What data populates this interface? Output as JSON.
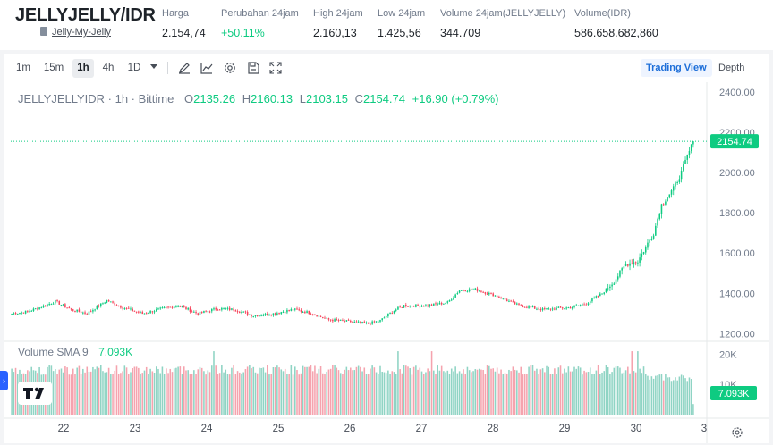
{
  "header": {
    "pair": "JELLYJELLY/IDR",
    "pair_link": "Jelly-My-Jelly",
    "stats": [
      {
        "label": "Harga",
        "value": "2.154,74",
        "up": false
      },
      {
        "label": "Perubahan 24jam",
        "value": "+50.11%",
        "up": true
      },
      {
        "label": "High 24jam",
        "value": "2.160,13",
        "up": false
      },
      {
        "label": "Low 24jam",
        "value": "1.425,56",
        "up": false
      },
      {
        "label": "Volume 24jam(JELLYJELLY)",
        "value": "344.709",
        "up": false
      },
      {
        "label": "Volume(IDR)",
        "value": "586.658.682,860",
        "up": false
      }
    ]
  },
  "toolbar": {
    "timeframes": [
      "1m",
      "15m",
      "1h",
      "4h",
      "1D"
    ],
    "active_timeframe": "1h",
    "tools": [
      "draw-icon",
      "indicators-icon",
      "settings-icon",
      "save-icon",
      "fullscreen-icon"
    ],
    "trading_view": "Trading View",
    "depth": "Depth"
  },
  "legend": {
    "symbol": "JELLYJELLYIDR · 1h · Bittime",
    "o_label": "O",
    "o": "2135.26",
    "h_label": "H",
    "h": "2160.13",
    "l_label": "L",
    "l": "2103.15",
    "c_label": "C",
    "c": "2154.74",
    "change": "+16.90 (+0.79%)"
  },
  "volume_legend": {
    "label": "Volume SMA 9",
    "value": "7.093K"
  },
  "colors": {
    "up": "#0ecb81",
    "down": "#f6465d",
    "vol_up": "#8fd4c4",
    "vol_down": "#f5a3ae",
    "accent": "#1e6fd9"
  },
  "chart_data": {
    "type": "candlestick",
    "title": "JELLYJELLYIDR · 1h · Bittime",
    "price_ticks": [
      1200,
      1400,
      1600,
      1800,
      2000,
      2200,
      2400
    ],
    "price_ticks_labels": [
      "1200.00",
      "1400.00",
      "1600.00",
      "1800.00",
      "2000.00",
      "2200.00",
      "2400.00"
    ],
    "ylim": [
      1180,
      2430
    ],
    "last_price": 2154.74,
    "last_price_label": "2154.74",
    "volume_ticks": [
      10000,
      20000
    ],
    "volume_ticks_labels": [
      "10K",
      "20K"
    ],
    "volume_sma_label": "7.093K",
    "volume_sma": 7093,
    "x_labels": [
      "22",
      "23",
      "24",
      "25",
      "26",
      "27",
      "28",
      "29",
      "30",
      "3"
    ],
    "close_anchors": [
      [
        0,
        1300
      ],
      [
        8,
        1310
      ],
      [
        14,
        1330
      ],
      [
        22,
        1360
      ],
      [
        30,
        1320
      ],
      [
        38,
        1300
      ],
      [
        48,
        1365
      ],
      [
        56,
        1330
      ],
      [
        66,
        1300
      ],
      [
        74,
        1320
      ],
      [
        84,
        1340
      ],
      [
        94,
        1300
      ],
      [
        104,
        1325
      ],
      [
        112,
        1320
      ],
      [
        122,
        1290
      ],
      [
        132,
        1300
      ],
      [
        142,
        1320
      ],
      [
        150,
        1305
      ],
      [
        160,
        1270
      ],
      [
        170,
        1260
      ],
      [
        180,
        1250
      ],
      [
        186,
        1265
      ],
      [
        192,
        1310
      ],
      [
        198,
        1340
      ],
      [
        210,
        1340
      ],
      [
        220,
        1355
      ],
      [
        226,
        1415
      ],
      [
        234,
        1420
      ],
      [
        244,
        1390
      ],
      [
        256,
        1340
      ],
      [
        268,
        1320
      ],
      [
        282,
        1330
      ],
      [
        290,
        1350
      ],
      [
        298,
        1400
      ],
      [
        304,
        1460
      ],
      [
        310,
        1545
      ],
      [
        316,
        1560
      ],
      [
        320,
        1630
      ],
      [
        324,
        1700
      ],
      [
        328,
        1840
      ],
      [
        334,
        1920
      ],
      [
        338,
        2000
      ],
      [
        341,
        2080
      ],
      [
        344,
        2154.74
      ]
    ],
    "volume_base": 15000,
    "volume_recent": 12500,
    "volume_peak_indices": [
      102,
      195,
      212,
      313,
      316
    ]
  }
}
